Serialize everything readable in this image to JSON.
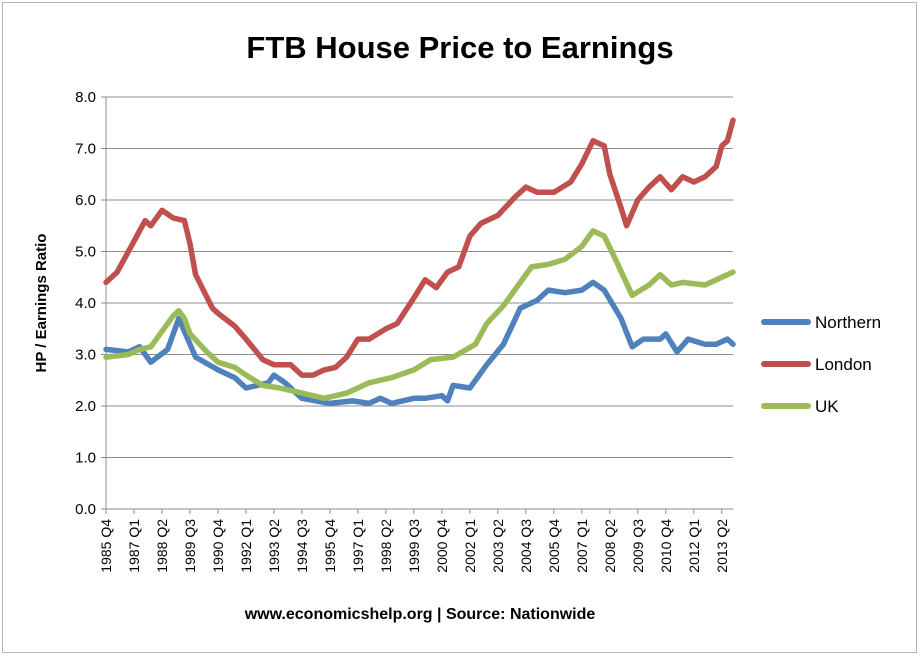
{
  "chart_data": {
    "type": "line",
    "title": "FTB House Price to Earnings",
    "ylabel": "HP / Earnings Ratio",
    "xlabel": "www.economicshelp.org | Source: Nationwide",
    "ylim": [
      0,
      8
    ],
    "yticks": [
      "0.0",
      "1.0",
      "2.0",
      "3.0",
      "4.0",
      "5.0",
      "6.0",
      "7.0",
      "8.0"
    ],
    "grid": "horizontal",
    "legend": "right",
    "x_start": "1985 Q4",
    "x_end": "2013 Q4",
    "x_tick_labels": [
      "1985 Q4",
      "1987 Q1",
      "1988 Q2",
      "1989 Q3",
      "1990 Q4",
      "1992 Q1",
      "1993 Q2",
      "1994 Q3",
      "1995 Q4",
      "1997 Q1",
      "1998 Q2",
      "1999 Q3",
      "2000 Q4",
      "2002 Q1",
      "2003 Q2",
      "2004 Q3",
      "2005 Q4",
      "2007 Q1",
      "2008 Q2",
      "2009 Q3",
      "2010 Q4",
      "2012 Q1",
      "2013 Q2"
    ],
    "series": [
      {
        "name": "Northern",
        "color": "#4f81bd",
        "points": [
          [
            "1985 Q4",
            3.1
          ],
          [
            "1986 Q4",
            3.05
          ],
          [
            "1987 Q2",
            3.15
          ],
          [
            "1987 Q4",
            2.85
          ],
          [
            "1988 Q3",
            3.1
          ],
          [
            "1989 Q1",
            3.7
          ],
          [
            "1989 Q3",
            3.2
          ],
          [
            "1989 Q4",
            2.95
          ],
          [
            "1990 Q4",
            2.7
          ],
          [
            "1991 Q3",
            2.55
          ],
          [
            "1992 Q1",
            2.35
          ],
          [
            "1993 Q1",
            2.45
          ],
          [
            "1993 Q2",
            2.6
          ],
          [
            "1993 Q4",
            2.45
          ],
          [
            "1994 Q3",
            2.15
          ],
          [
            "1995 Q4",
            2.05
          ],
          [
            "1996 Q4",
            2.1
          ],
          [
            "1997 Q3",
            2.05
          ],
          [
            "1998 Q1",
            2.15
          ],
          [
            "1998 Q3",
            2.05
          ],
          [
            "1999 Q3",
            2.15
          ],
          [
            "2000 Q1",
            2.15
          ],
          [
            "2000 Q4",
            2.2
          ],
          [
            "2001 Q1",
            2.1
          ],
          [
            "2001 Q2",
            2.4
          ],
          [
            "2002 Q1",
            2.35
          ],
          [
            "2002 Q4",
            2.8
          ],
          [
            "2003 Q3",
            3.2
          ],
          [
            "2004 Q2",
            3.9
          ],
          [
            "2005 Q1",
            4.05
          ],
          [
            "2005 Q3",
            4.25
          ],
          [
            "2006 Q2",
            4.2
          ],
          [
            "2007 Q1",
            4.25
          ],
          [
            "2007 Q3",
            4.4
          ],
          [
            "2008 Q1",
            4.25
          ],
          [
            "2008 Q4",
            3.7
          ],
          [
            "2009 Q2",
            3.15
          ],
          [
            "2009 Q4",
            3.3
          ],
          [
            "2010 Q3",
            3.3
          ],
          [
            "2010 Q4",
            3.4
          ],
          [
            "2011 Q2",
            3.05
          ],
          [
            "2011 Q4",
            3.3
          ],
          [
            "2012 Q3",
            3.2
          ],
          [
            "2013 Q1",
            3.2
          ],
          [
            "2013 Q3",
            3.3
          ],
          [
            "2013 Q4",
            3.2
          ]
        ]
      },
      {
        "name": "London",
        "color": "#c0504d",
        "points": [
          [
            "1985 Q4",
            4.4
          ],
          [
            "1986 Q2",
            4.6
          ],
          [
            "1986 Q4",
            5.0
          ],
          [
            "1987 Q3",
            5.6
          ],
          [
            "1987 Q4",
            5.5
          ],
          [
            "1988 Q2",
            5.8
          ],
          [
            "1988 Q4",
            5.65
          ],
          [
            "1989 Q2",
            5.6
          ],
          [
            "1989 Q3",
            5.15
          ],
          [
            "1989 Q4",
            4.55
          ],
          [
            "1990 Q3",
            3.9
          ],
          [
            "1990 Q4",
            3.8
          ],
          [
            "1991 Q3",
            3.55
          ],
          [
            "1992 Q1",
            3.3
          ],
          [
            "1992 Q4",
            2.9
          ],
          [
            "1993 Q2",
            2.8
          ],
          [
            "1994 Q1",
            2.8
          ],
          [
            "1994 Q3",
            2.6
          ],
          [
            "1995 Q1",
            2.6
          ],
          [
            "1995 Q3",
            2.7
          ],
          [
            "1996 Q1",
            2.75
          ],
          [
            "1996 Q3",
            2.95
          ],
          [
            "1997 Q1",
            3.3
          ],
          [
            "1997 Q3",
            3.3
          ],
          [
            "1998 Q2",
            3.5
          ],
          [
            "1998 Q4",
            3.6
          ],
          [
            "1999 Q3",
            4.1
          ],
          [
            "2000 Q1",
            4.45
          ],
          [
            "2000 Q3",
            4.3
          ],
          [
            "2001 Q1",
            4.6
          ],
          [
            "2001 Q3",
            4.7
          ],
          [
            "2002 Q1",
            5.3
          ],
          [
            "2002 Q3",
            5.55
          ],
          [
            "2003 Q2",
            5.7
          ],
          [
            "2004 Q1",
            6.05
          ],
          [
            "2004 Q3",
            6.25
          ],
          [
            "2005 Q1",
            6.15
          ],
          [
            "2005 Q4",
            6.15
          ],
          [
            "2006 Q3",
            6.35
          ],
          [
            "2007 Q1",
            6.7
          ],
          [
            "2007 Q3",
            7.15
          ],
          [
            "2008 Q1",
            7.05
          ],
          [
            "2008 Q2",
            6.5
          ],
          [
            "2008 Q4",
            5.85
          ],
          [
            "2009 Q1",
            5.5
          ],
          [
            "2009 Q3",
            6.0
          ],
          [
            "2010 Q1",
            6.25
          ],
          [
            "2010 Q3",
            6.45
          ],
          [
            "2011 Q1",
            6.2
          ],
          [
            "2011 Q3",
            6.45
          ],
          [
            "2012 Q1",
            6.35
          ],
          [
            "2012 Q3",
            6.45
          ],
          [
            "2013 Q1",
            6.65
          ],
          [
            "2013 Q2",
            7.05
          ],
          [
            "2013 Q3",
            7.15
          ],
          [
            "2013 Q4",
            7.55
          ]
        ]
      },
      {
        "name": "UK",
        "color": "#9bbb59",
        "points": [
          [
            "1985 Q4",
            2.95
          ],
          [
            "1986 Q4",
            3.0
          ],
          [
            "1987 Q2",
            3.1
          ],
          [
            "1987 Q4",
            3.15
          ],
          [
            "1988 Q2",
            3.45
          ],
          [
            "1988 Q4",
            3.75
          ],
          [
            "1989 Q1",
            3.85
          ],
          [
            "1989 Q2",
            3.7
          ],
          [
            "1989 Q3",
            3.4
          ],
          [
            "1990 Q2",
            3.05
          ],
          [
            "1990 Q4",
            2.85
          ],
          [
            "1991 Q3",
            2.75
          ],
          [
            "1992 Q1",
            2.6
          ],
          [
            "1992 Q4",
            2.4
          ],
          [
            "1993 Q3",
            2.35
          ],
          [
            "1994 Q3",
            2.25
          ],
          [
            "1995 Q3",
            2.15
          ],
          [
            "1996 Q3",
            2.25
          ],
          [
            "1997 Q3",
            2.45
          ],
          [
            "1998 Q3",
            2.55
          ],
          [
            "1999 Q3",
            2.7
          ],
          [
            "2000 Q2",
            2.9
          ],
          [
            "2001 Q2",
            2.95
          ],
          [
            "2002 Q2",
            3.2
          ],
          [
            "2002 Q4",
            3.6
          ],
          [
            "2003 Q3",
            3.95
          ],
          [
            "2004 Q2",
            4.4
          ],
          [
            "2004 Q4",
            4.7
          ],
          [
            "2005 Q3",
            4.75
          ],
          [
            "2006 Q2",
            4.85
          ],
          [
            "2007 Q1",
            5.1
          ],
          [
            "2007 Q3",
            5.4
          ],
          [
            "2008 Q1",
            5.3
          ],
          [
            "2008 Q3",
            4.85
          ],
          [
            "2009 Q2",
            4.15
          ],
          [
            "2010 Q1",
            4.35
          ],
          [
            "2010 Q3",
            4.55
          ],
          [
            "2011 Q1",
            4.35
          ],
          [
            "2011 Q3",
            4.4
          ],
          [
            "2012 Q3",
            4.35
          ],
          [
            "2013 Q2",
            4.5
          ],
          [
            "2013 Q4",
            4.6
          ]
        ]
      }
    ]
  }
}
